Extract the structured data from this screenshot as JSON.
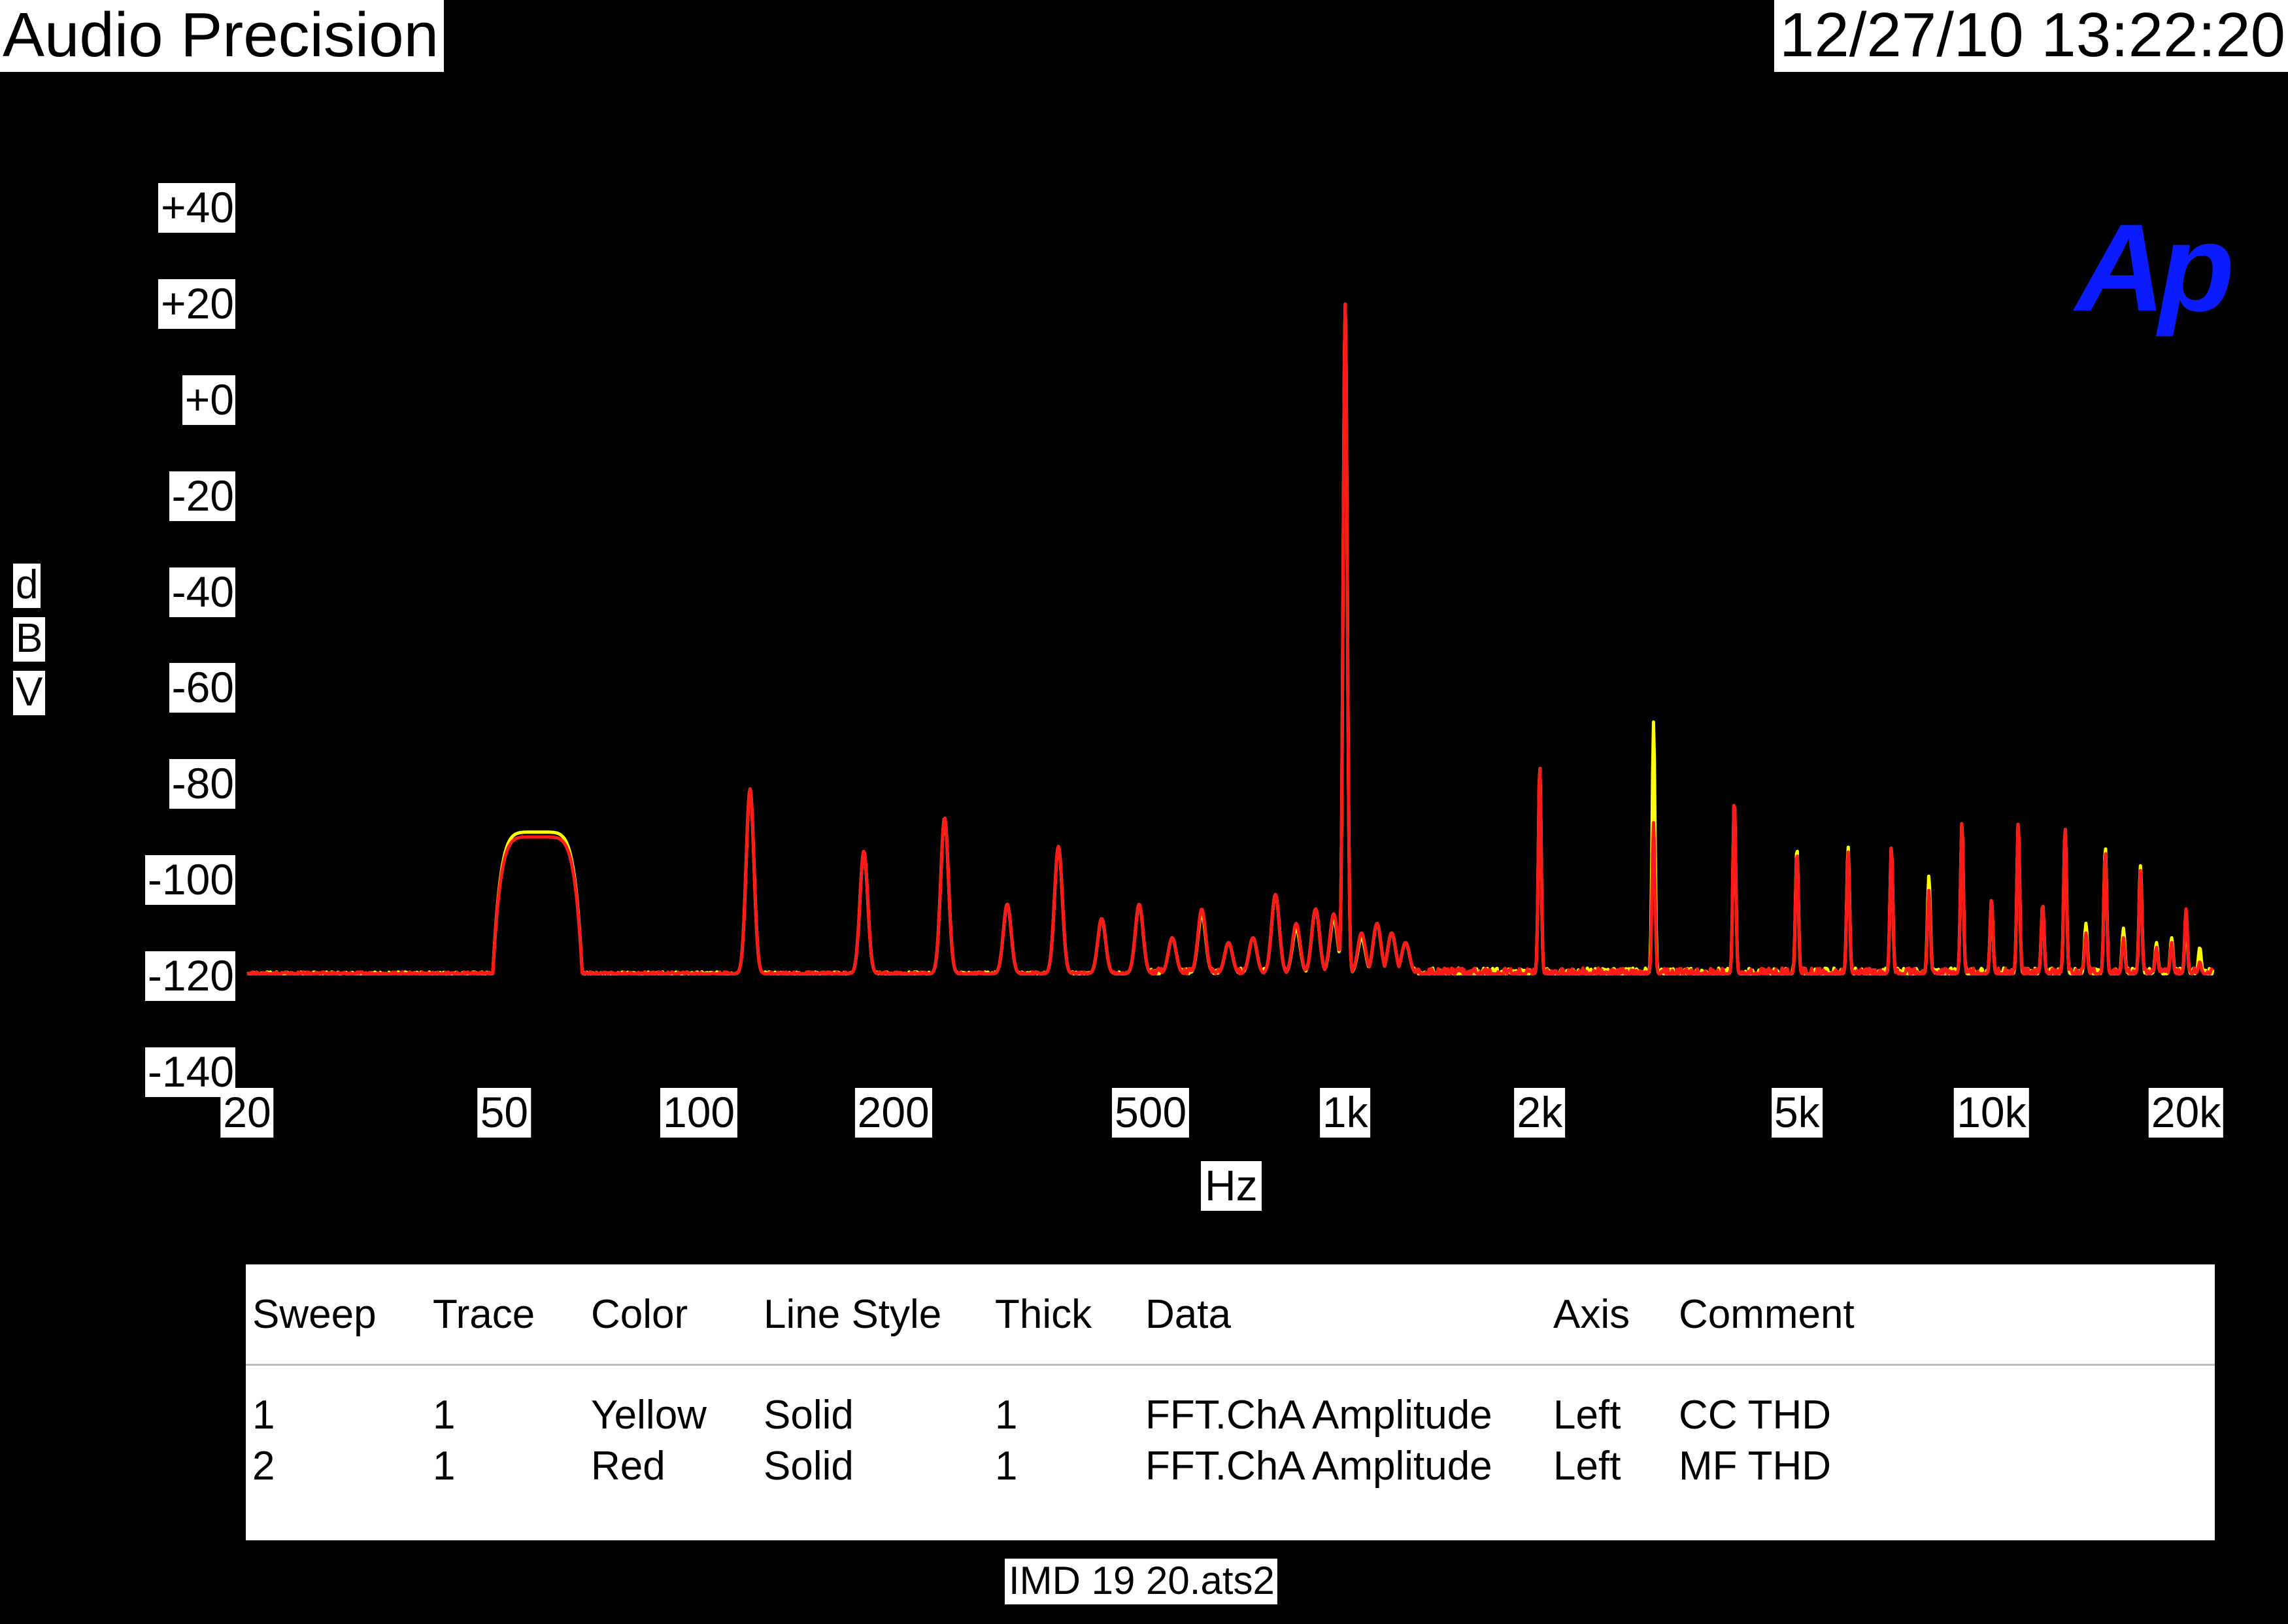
{
  "header": {
    "title": "Audio Precision",
    "timestamp": "12/27/10 13:22:20"
  },
  "logo_text": "Ap",
  "filename": "IMD 19 20.ats2",
  "legend": {
    "columns": [
      "Sweep",
      "Trace",
      "Color",
      "Line Style",
      "Thick",
      "Data",
      "Axis",
      "Comment"
    ],
    "rows": [
      [
        "1",
        "1",
        "Yellow",
        "Solid",
        "1",
        "FFT.ChA Amplitude",
        "Left",
        "CC THD"
      ],
      [
        "2",
        "1",
        "Red",
        "Solid",
        "1",
        "FFT.ChA Amplitude",
        "Left",
        "MF THD"
      ]
    ]
  },
  "colors": {
    "background": "#000000",
    "trace1": "#ffff00",
    "trace2": "#ff1a1a",
    "logo": "#0a1cff"
  },
  "chart_data": {
    "type": "line",
    "xlabel": "Hz",
    "ylabel": "dBV",
    "xscale": "log",
    "xlim": [
      20,
      22000
    ],
    "ylim": [
      -140,
      40
    ],
    "grid": false,
    "legend_placement": "bottom table",
    "xticks": [
      {
        "value": 20,
        "label": "20"
      },
      {
        "value": 50,
        "label": "50"
      },
      {
        "value": 100,
        "label": "100"
      },
      {
        "value": 200,
        "label": "200"
      },
      {
        "value": 500,
        "label": "500"
      },
      {
        "value": 1000,
        "label": "1k"
      },
      {
        "value": 2000,
        "label": "2k"
      },
      {
        "value": 5000,
        "label": "5k"
      },
      {
        "value": 10000,
        "label": "10k"
      },
      {
        "value": 20000,
        "label": "20k"
      }
    ],
    "yticks": [
      {
        "value": 40,
        "label": "+40"
      },
      {
        "value": 20,
        "label": "+20"
      },
      {
        "value": 0,
        "label": "+0"
      },
      {
        "value": -20,
        "label": "-20"
      },
      {
        "value": -40,
        "label": "-40"
      },
      {
        "value": -60,
        "label": "-60"
      },
      {
        "value": -80,
        "label": "-80"
      },
      {
        "value": -100,
        "label": "-100"
      },
      {
        "value": -120,
        "label": "-120"
      },
      {
        "value": -140,
        "label": "-140"
      }
    ],
    "noise_floor": -119.5,
    "series": [
      {
        "sweep": 1,
        "color": "#ffff00",
        "peaks": [
          {
            "type": "hump",
            "f": [
              48,
              66
            ],
            "level": -90
          },
          {
            "f": 120,
            "level": -81
          },
          {
            "f": 180,
            "level": -94
          },
          {
            "f": 240,
            "level": -87
          },
          {
            "f": 300,
            "level": -105
          },
          {
            "f": 360,
            "level": -93
          },
          {
            "f": 420,
            "level": -108
          },
          {
            "f": 480,
            "level": -105
          },
          {
            "f": 540,
            "level": -112
          },
          {
            "f": 600,
            "level": -107
          },
          {
            "f": 660,
            "level": -113
          },
          {
            "f": 720,
            "level": -112
          },
          {
            "f": 780,
            "level": -103
          },
          {
            "f": 840,
            "level": -110
          },
          {
            "f": 900,
            "level": -106
          },
          {
            "f": 960,
            "level": -108
          },
          {
            "f": 1000,
            "level": 20
          },
          {
            "f": 1060,
            "level": -112
          },
          {
            "f": 1120,
            "level": -109
          },
          {
            "f": 1180,
            "level": -111
          },
          {
            "f": 1240,
            "level": -113
          },
          {
            "f": 2000,
            "level": -76
          },
          {
            "f": 3000,
            "level": -67
          },
          {
            "f": 4000,
            "level": -83
          },
          {
            "f": 5000,
            "level": -93
          },
          {
            "f": 6000,
            "level": -93
          },
          {
            "f": 7000,
            "level": -93
          },
          {
            "f": 8000,
            "level": -99
          },
          {
            "f": 9000,
            "level": -88
          },
          {
            "f": 10000,
            "level": -104
          },
          {
            "f": 11000,
            "level": -88
          },
          {
            "f": 12000,
            "level": -105
          },
          {
            "f": 13000,
            "level": -89
          },
          {
            "f": 14000,
            "level": -109
          },
          {
            "f": 15000,
            "level": -93
          },
          {
            "f": 16000,
            "level": -110
          },
          {
            "f": 17000,
            "level": -97
          },
          {
            "f": 18000,
            "level": -113
          },
          {
            "f": 19000,
            "level": -112
          },
          {
            "f": 20000,
            "level": -108
          },
          {
            "f": 21000,
            "level": -114
          }
        ]
      },
      {
        "sweep": 2,
        "color": "#ff1a1a",
        "peaks": [
          {
            "type": "hump",
            "f": [
              48,
              66
            ],
            "level": -91
          },
          {
            "f": 120,
            "level": -81
          },
          {
            "f": 180,
            "level": -94
          },
          {
            "f": 240,
            "level": -87
          },
          {
            "f": 300,
            "level": -105
          },
          {
            "f": 360,
            "level": -93
          },
          {
            "f": 420,
            "level": -108
          },
          {
            "f": 480,
            "level": -105
          },
          {
            "f": 540,
            "level": -112
          },
          {
            "f": 600,
            "level": -106
          },
          {
            "f": 660,
            "level": -113
          },
          {
            "f": 720,
            "level": -112
          },
          {
            "f": 780,
            "level": -103
          },
          {
            "f": 840,
            "level": -109
          },
          {
            "f": 900,
            "level": -106
          },
          {
            "f": 960,
            "level": -107
          },
          {
            "f": 1000,
            "level": 20
          },
          {
            "f": 1060,
            "level": -111
          },
          {
            "f": 1120,
            "level": -109
          },
          {
            "f": 1180,
            "level": -111
          },
          {
            "f": 1240,
            "level": -113
          },
          {
            "f": 2000,
            "level": -76
          },
          {
            "f": 3000,
            "level": -88
          },
          {
            "f": 4000,
            "level": -83
          },
          {
            "f": 5000,
            "level": -94
          },
          {
            "f": 6000,
            "level": -94
          },
          {
            "f": 7000,
            "level": -93
          },
          {
            "f": 8000,
            "level": -102
          },
          {
            "f": 9000,
            "level": -88
          },
          {
            "f": 10000,
            "level": -104
          },
          {
            "f": 11000,
            "level": -88
          },
          {
            "f": 12000,
            "level": -105
          },
          {
            "f": 13000,
            "level": -89
          },
          {
            "f": 14000,
            "level": -111
          },
          {
            "f": 15000,
            "level": -94
          },
          {
            "f": 16000,
            "level": -112
          },
          {
            "f": 17000,
            "level": -98
          },
          {
            "f": 18000,
            "level": -114
          },
          {
            "f": 19000,
            "level": -113
          },
          {
            "f": 20000,
            "level": -106
          },
          {
            "f": 21000,
            "level": -117
          }
        ]
      }
    ]
  }
}
